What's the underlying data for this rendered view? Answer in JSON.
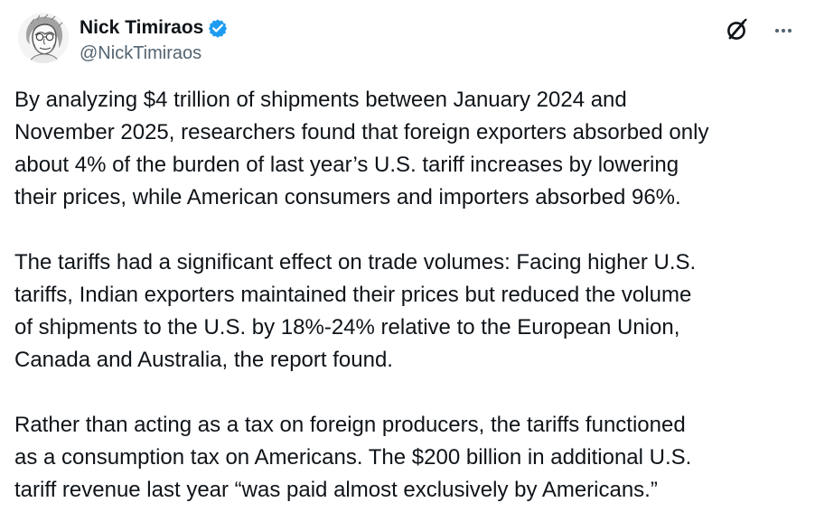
{
  "post": {
    "author": {
      "name": "Nick Timiraos",
      "handle": "@NickTimiraos",
      "verified": true,
      "verified_color": "#1d9bf0",
      "avatar_icon": "sketch-portrait-avatar"
    },
    "header_actions": [
      {
        "icon": "grok-icon"
      },
      {
        "icon": "more-options-icon"
      }
    ],
    "paragraphs": [
      {
        "lines": [
          "By analyzing $4 trillion of shipments between January 2024 and",
          "November 2025, researchers found that foreign exporters absorbed only",
          "about 4% of the burden of last year’s U.S. tariff increases by lowering",
          "their prices, while American consumers and importers absorbed 96%."
        ]
      },
      {
        "lines": [
          "The tariffs had a significant effect on trade volumes: Facing higher U.S.",
          "tariffs, Indian exporters maintained their prices but reduced the volume",
          "of shipments to the U.S. by 18%-24% relative to the European Union,",
          "Canada and Australia, the report found."
        ]
      },
      {
        "lines": [
          "Rather than acting as a tax on foreign producers, the tariffs functioned",
          "as a consumption tax on Americans. The $200 billion in additional U.S.",
          "tariff revenue last year “was paid almost exclusively by Americans.”"
        ]
      }
    ]
  }
}
